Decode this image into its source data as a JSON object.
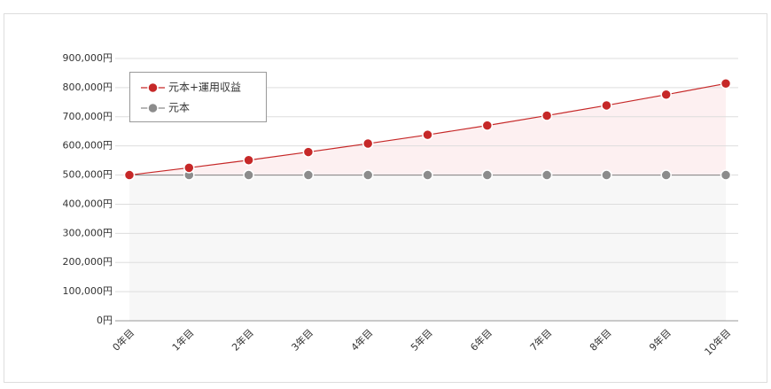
{
  "chart_data": {
    "type": "line",
    "categories": [
      "0年目",
      "1年目",
      "2年目",
      "3年目",
      "4年目",
      "5年目",
      "6年目",
      "7年目",
      "8年目",
      "9年目",
      "10年目"
    ],
    "series": [
      {
        "name": "元本+運用収益",
        "color": "#c62828",
        "fill": "#fdf0f1",
        "values": [
          500000,
          525000,
          551000,
          579000,
          608000,
          638000,
          670000,
          704000,
          739000,
          776000,
          814000
        ]
      },
      {
        "name": "元本",
        "color": "#8c8c8c",
        "fill": "#f7f7f7",
        "values": [
          500000,
          500000,
          500000,
          500000,
          500000,
          500000,
          500000,
          500000,
          500000,
          500000,
          500000
        ]
      }
    ],
    "ylim": [
      0,
      900000
    ],
    "yticks": [
      {
        "value": 0,
        "label": "0円"
      },
      {
        "value": 100000,
        "label": "100,000円"
      },
      {
        "value": 200000,
        "label": "200,000円"
      },
      {
        "value": 300000,
        "label": "300,000円"
      },
      {
        "value": 400000,
        "label": "400,000円"
      },
      {
        "value": 500000,
        "label": "500,000円"
      },
      {
        "value": 600000,
        "label": "600,000円"
      },
      {
        "value": 700000,
        "label": "700,000円"
      },
      {
        "value": 800000,
        "label": "800,000円"
      },
      {
        "value": 900000,
        "label": "900,000円"
      }
    ],
    "grid": true,
    "legend": "upper left"
  }
}
